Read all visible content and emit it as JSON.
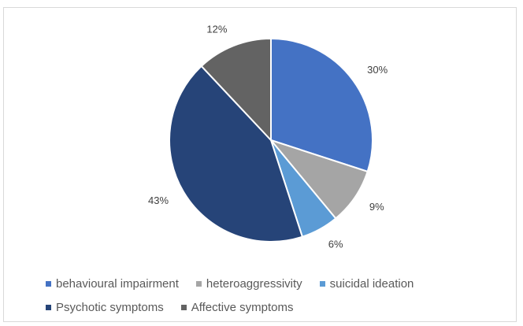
{
  "chart_data": {
    "type": "pie",
    "title": "",
    "slices": [
      {
        "label": "behavioural impairment",
        "value": 30,
        "display": "30%",
        "color": "#4472c4"
      },
      {
        "label": "heteroaggressivity",
        "value": 9,
        "display": "9%",
        "color": "#a5a5a5"
      },
      {
        "label": "suicidal ideation",
        "value": 6,
        "display": "6%",
        "color": "#5b9bd5"
      },
      {
        "label": "Psychotic symptoms",
        "value": 43,
        "display": "43%",
        "color": "#264478"
      },
      {
        "label": "Affective symptoms",
        "value": 12,
        "display": "12%",
        "color": "#636363"
      }
    ],
    "legend_position": "bottom",
    "start_angle_deg": 0,
    "direction": "clockwise"
  }
}
